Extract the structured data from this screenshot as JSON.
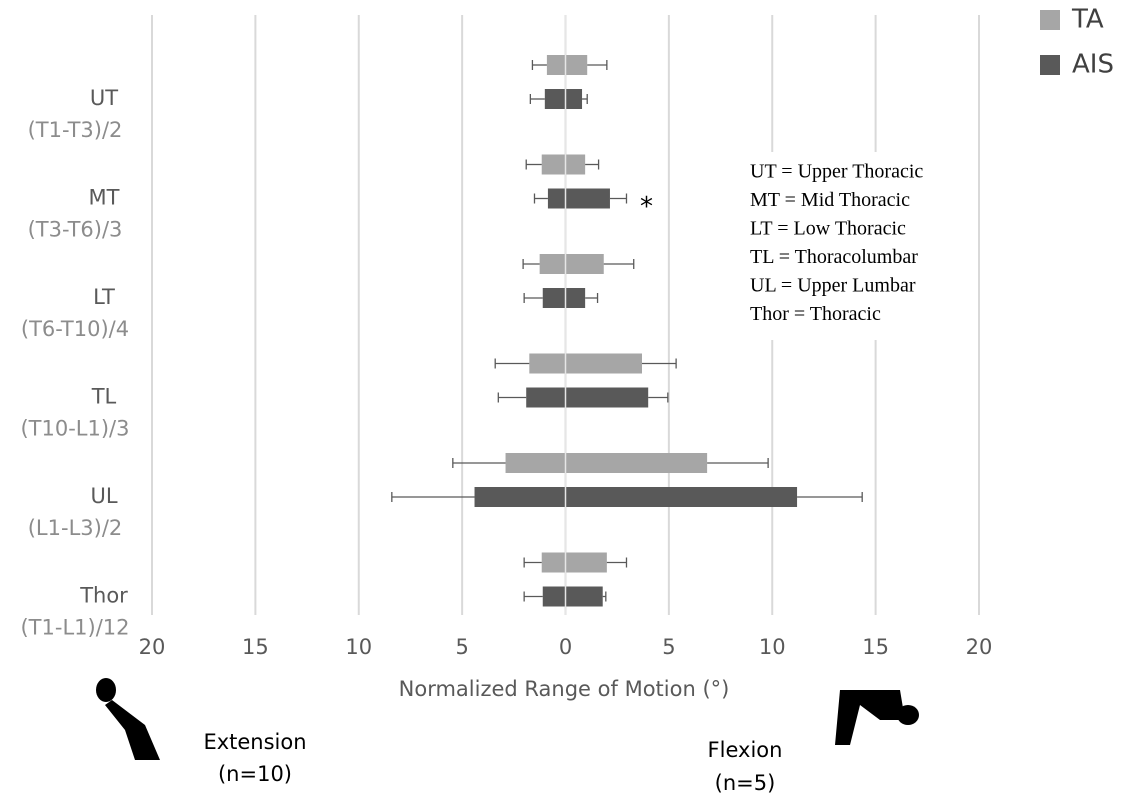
{
  "chart_data": {
    "type": "range-bar",
    "x_label": "Normalized Range of Motion (°)",
    "categories": [
      "UT",
      "MT",
      "LT",
      "TL",
      "UL",
      "Thor"
    ],
    "category_ranges": [
      "(T1-T3)/2",
      "(T3-T6)/3",
      "(T6-T10)/4",
      "(T10-L1)/3",
      "(L1-L3)/2",
      "(T1-L1)/12"
    ],
    "xlim": [
      -20,
      20
    ],
    "xticks": [
      {
        "value": -20,
        "label": "20"
      },
      {
        "value": -15,
        "label": "15"
      },
      {
        "value": -10,
        "label": "10"
      },
      {
        "value": -5,
        "label": "5"
      },
      0,
      5,
      10,
      15,
      20
    ],
    "grid": true,
    "series": [
      {
        "name": "TA",
        "color": "#a6a6a6",
        "extension": [
          -0.9,
          -1.15,
          -1.25,
          -1.75,
          -2.9,
          -1.15
        ],
        "flexion": [
          1.05,
          0.95,
          1.85,
          3.7,
          6.85,
          2.0
        ],
        "extension_error": [
          0.7,
          0.75,
          0.8,
          1.65,
          2.55,
          0.85
        ],
        "flexion_error": [
          0.95,
          0.65,
          1.45,
          1.65,
          2.95,
          0.95
        ]
      },
      {
        "name": "AIS",
        "color": "#595959",
        "extension": [
          -1.0,
          -0.85,
          -1.1,
          -1.9,
          -4.4,
          -1.1
        ],
        "flexion": [
          0.8,
          2.15,
          0.95,
          4.0,
          11.2,
          1.8
        ],
        "extension_error": [
          0.7,
          0.65,
          0.9,
          1.35,
          4.0,
          0.9
        ],
        "flexion_error": [
          0.25,
          0.8,
          0.6,
          0.95,
          3.15,
          0.15
        ]
      }
    ],
    "annotation": "*",
    "legend_notes": [
      "UT = Upper Thoracic",
      "MT = Mid Thoracic",
      "LT = Low Thoracic",
      "TL = Thoracolumbar",
      "UL = Upper Lumbar",
      "Thor = Thoracic"
    ],
    "extension_label": [
      "Extension",
      "(n=10)"
    ],
    "flexion_label": [
      "Flexion",
      "(n=5)"
    ]
  }
}
